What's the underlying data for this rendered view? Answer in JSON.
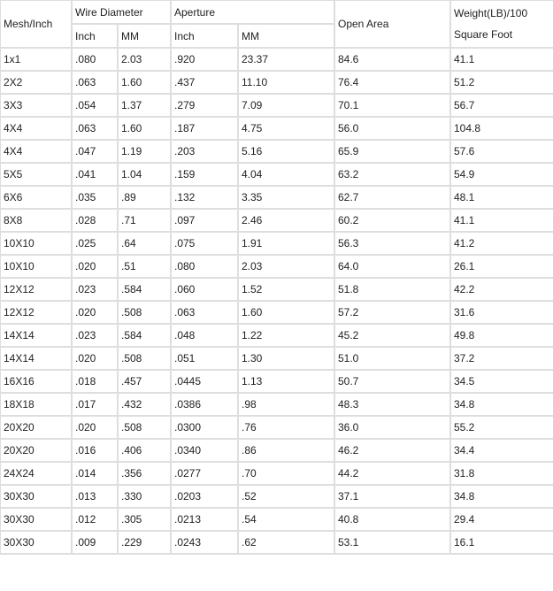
{
  "header": {
    "mesh": "Mesh/Inch",
    "wire_diameter": "Wire Diameter",
    "aperture": "Aperture",
    "open_area": "Open Area",
    "weight_line1": "Weight(LB)/100",
    "weight_line2": "Square Foot",
    "wire_inch": "Inch",
    "wire_mm": "MM",
    "ap_inch": "Inch",
    "ap_mm": "MM"
  },
  "rows": [
    [
      "1x1",
      ".080",
      "2.03",
      ".920",
      "23.37",
      "84.6",
      "41.1"
    ],
    [
      "2X2",
      ".063",
      "1.60",
      ".437",
      "11.10",
      "76.4",
      "51.2"
    ],
    [
      "3X3",
      ".054",
      "1.37",
      ".279",
      "7.09",
      "70.1",
      "56.7"
    ],
    [
      "4X4",
      ".063",
      "1.60",
      ".187",
      "4.75",
      "56.0",
      "104.8"
    ],
    [
      "4X4",
      ".047",
      "1.19",
      ".203",
      "5.16",
      "65.9",
      "57.6"
    ],
    [
      "5X5",
      ".041",
      "1.04",
      ".159",
      "4.04",
      "63.2",
      "54.9"
    ],
    [
      "6X6",
      ".035",
      ".89",
      ".132",
      "3.35",
      "62.7",
      "48.1"
    ],
    [
      "8X8",
      ".028",
      ".71",
      ".097",
      "2.46",
      "60.2",
      "41.1"
    ],
    [
      "10X10",
      ".025",
      ".64",
      ".075",
      "1.91",
      "56.3",
      "41.2"
    ],
    [
      "10X10",
      ".020",
      ".51",
      ".080",
      "2.03",
      "64.0",
      "26.1"
    ],
    [
      "12X12",
      ".023",
      ".584",
      ".060",
      "1.52",
      "51.8",
      "42.2"
    ],
    [
      "12X12",
      ".020",
      ".508",
      ".063",
      "1.60",
      "57.2",
      "31.6"
    ],
    [
      "14X14",
      ".023",
      ".584",
      ".048",
      "1.22",
      "45.2",
      "49.8"
    ],
    [
      "14X14",
      ".020",
      ".508",
      ".051",
      "1.30",
      "51.0",
      "37.2"
    ],
    [
      "16X16",
      ".018",
      ".457",
      ".0445",
      "1.13",
      "50.7",
      "34.5"
    ],
    [
      "18X18",
      ".017",
      ".432",
      ".0386",
      ".98",
      "48.3",
      "34.8"
    ],
    [
      "20X20",
      ".020",
      ".508",
      ".0300",
      ".76",
      "36.0",
      "55.2"
    ],
    [
      "20X20",
      ".016",
      ".406",
      ".0340",
      ".86",
      "46.2",
      "34.4"
    ],
    [
      "24X24",
      ".014",
      ".356",
      ".0277",
      ".70",
      "44.2",
      "31.8"
    ],
    [
      "30X30",
      ".013",
      ".330",
      ".0203",
      ".52",
      "37.1",
      "34.8"
    ],
    [
      "30X30",
      ".012",
      ".305",
      ".0213",
      ".54",
      "40.8",
      "29.4"
    ],
    [
      "30X30",
      ".009",
      ".229",
      ".0243",
      ".62",
      "53.1",
      "16.1"
    ]
  ]
}
